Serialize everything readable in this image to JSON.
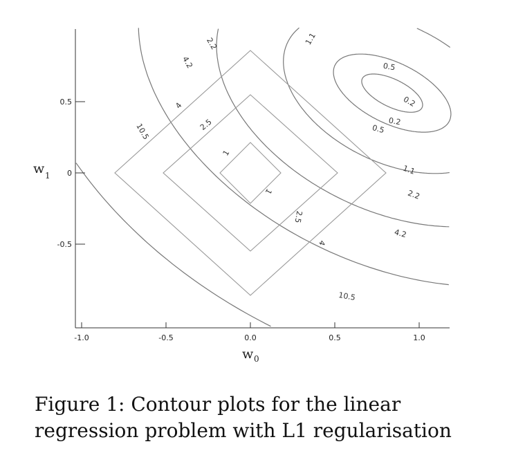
{
  "caption": "Figure 1: Contour plots for the linear regression problem with L1 regularisation",
  "chart_data": {
    "type": "contour",
    "xlabel": "w",
    "xlabel_sub": "0",
    "ylabel": "w",
    "ylabel_sub": "1",
    "xlim": [
      -1.0,
      1.2
    ],
    "ylim": [
      -1.0,
      1.0
    ],
    "x_ticks": [
      -1.0,
      -0.5,
      0.0,
      0.5,
      1.0
    ],
    "x_tick_labels": [
      "-1.0",
      "-0.5",
      "0.0",
      "0.5",
      "1.0"
    ],
    "y_ticks": [
      0.5,
      0,
      -0.5
    ],
    "y_tick_labels": [
      "0.5",
      "0",
      "-0.5"
    ],
    "grid": false,
    "loss_contours": {
      "center": [
        0.84,
        0.56
      ],
      "levels": [
        0.2,
        0.5,
        1.1,
        2.2,
        4.2,
        10.5
      ],
      "level_labels": [
        "0.2",
        "0.5",
        "1.1",
        "2.2",
        "4.2",
        "10.5"
      ]
    },
    "l1_contours": {
      "center": [
        0.0,
        0.0
      ],
      "levels": [
        1,
        2.5,
        4
      ],
      "level_labels": [
        "1",
        "2.5",
        "4"
      ]
    }
  }
}
